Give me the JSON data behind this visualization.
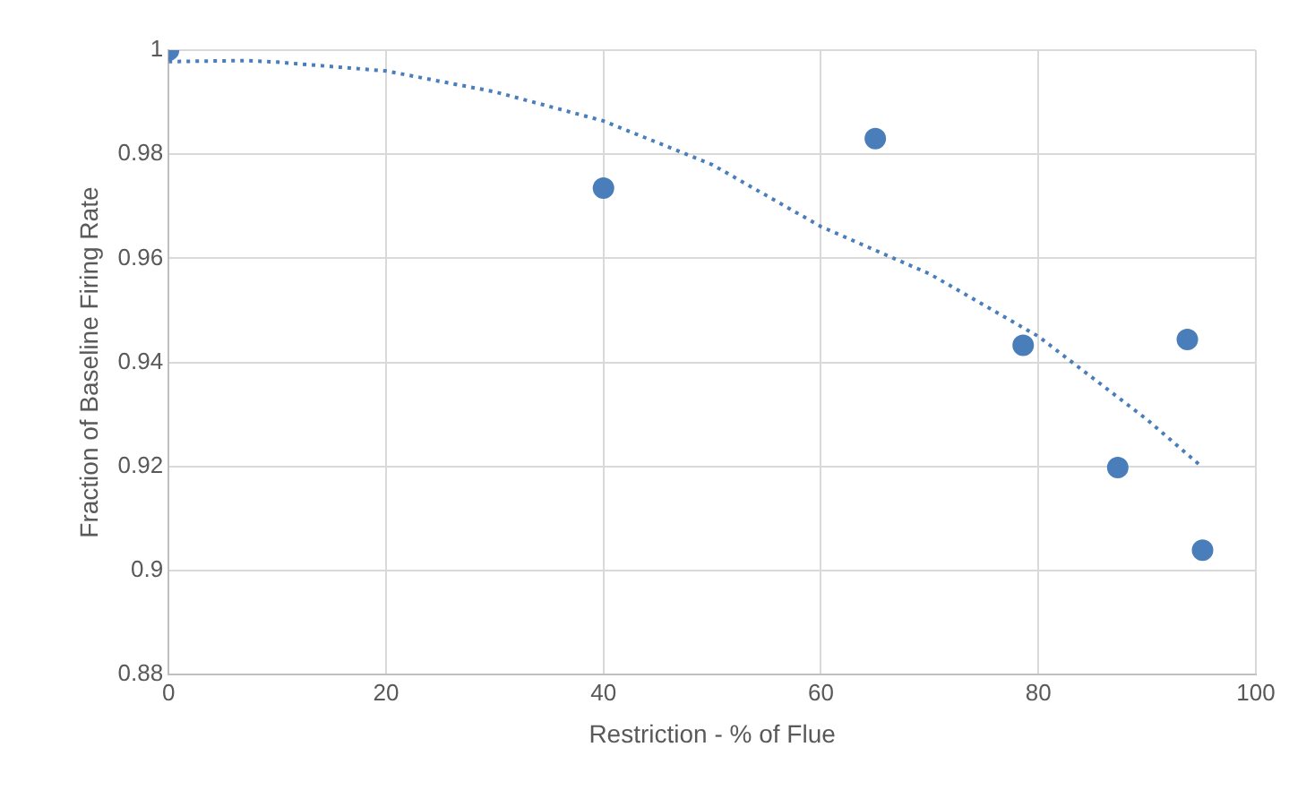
{
  "chart_data": {
    "type": "scatter",
    "xlabel": "Restriction - % of Flue",
    "ylabel": "Fraction of Baseline Firing Rate",
    "xlim": [
      0,
      100
    ],
    "xticks": [
      0,
      20,
      40,
      60,
      80,
      100
    ],
    "ylim": [
      0.88,
      1
    ],
    "yticks": [
      0.88,
      0.9,
      0.92,
      0.94,
      0.96,
      0.98,
      1
    ],
    "grid": true,
    "legend": false,
    "series": [
      {
        "type": "scatter",
        "color": "#4a7ebb",
        "marker": "circle",
        "x": [
          0,
          40,
          65,
          78.6,
          87.3,
          93.7,
          95.1
        ],
        "values": [
          1.0,
          0.9735,
          0.983,
          0.9433,
          0.9198,
          0.9444,
          0.9039
        ]
      },
      {
        "type": "line",
        "color": "#4a7ebb",
        "marker": "none",
        "line_style": "dotted",
        "x": [
          0,
          7,
          10,
          20,
          30,
          40,
          50,
          60,
          70,
          80,
          90,
          95
        ],
        "values": [
          0.9978,
          0.998,
          0.9977,
          0.996,
          0.992,
          0.9864,
          0.978,
          0.9661,
          0.957,
          0.945,
          0.929,
          0.92
        ]
      }
    ]
  }
}
